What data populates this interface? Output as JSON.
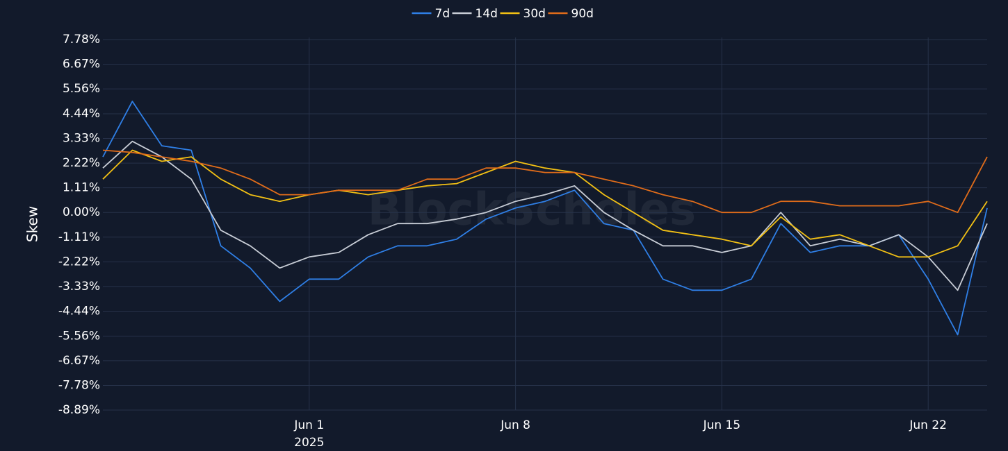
{
  "chart_data": {
    "type": "line",
    "y_label": "Skew",
    "watermark": "BlockScholes",
    "x": [
      "2025-05-25",
      "2025-05-26",
      "2025-05-27",
      "2025-05-28",
      "2025-05-29",
      "2025-05-30",
      "2025-05-31",
      "2025-06-01",
      "2025-06-02",
      "2025-06-03",
      "2025-06-04",
      "2025-06-05",
      "2025-06-06",
      "2025-06-07",
      "2025-06-08",
      "2025-06-09",
      "2025-06-10",
      "2025-06-11",
      "2025-06-12",
      "2025-06-13",
      "2025-06-14",
      "2025-06-15",
      "2025-06-16",
      "2025-06-17",
      "2025-06-18",
      "2025-06-19",
      "2025-06-20",
      "2025-06-21",
      "2025-06-22",
      "2025-06-23",
      "2025-06-24"
    ],
    "xlim": [
      "2025-05-25",
      "2025-06-24"
    ],
    "xticks": [
      {
        "value": "2025-06-01",
        "label": "Jun 1",
        "sublabel": "2025"
      },
      {
        "value": "2025-06-08",
        "label": "Jun 8"
      },
      {
        "value": "2025-06-15",
        "label": "Jun 15"
      },
      {
        "value": "2025-06-22",
        "label": "Jun 22"
      }
    ],
    "ylim": [
      -8.89,
      7.78
    ],
    "yticks": [
      {
        "value": -8.89,
        "label": "-8.89%"
      },
      {
        "value": -7.78,
        "label": "-7.78%"
      },
      {
        "value": -6.67,
        "label": "-6.67%"
      },
      {
        "value": -5.56,
        "label": "-5.56%"
      },
      {
        "value": -4.44,
        "label": "-4.44%"
      },
      {
        "value": -3.33,
        "label": "-3.33%"
      },
      {
        "value": -2.22,
        "label": "-2.22%"
      },
      {
        "value": -1.11,
        "label": "-1.11%"
      },
      {
        "value": 0,
        "label": "0.00%"
      },
      {
        "value": 1.11,
        "label": "1.11%"
      },
      {
        "value": 2.22,
        "label": "2.22%"
      },
      {
        "value": 3.33,
        "label": "3.33%"
      },
      {
        "value": 4.44,
        "label": "4.44%"
      },
      {
        "value": 5.56,
        "label": "5.56%"
      },
      {
        "value": 6.67,
        "label": "6.67%"
      },
      {
        "value": 7.78,
        "label": "7.78%"
      }
    ],
    "grid": true,
    "legend": "top",
    "series": [
      {
        "name": "7d",
        "color": "#2f7fe6",
        "values": [
          2.5,
          5.0,
          3.0,
          2.8,
          -1.5,
          -2.5,
          -4.0,
          -3.0,
          -3.0,
          -2.0,
          -1.5,
          -1.5,
          -1.2,
          -0.3,
          0.2,
          0.5,
          1.0,
          -0.5,
          -0.8,
          -3.0,
          -3.5,
          -3.5,
          -3.0,
          -0.5,
          -1.8,
          -1.5,
          -1.5,
          -1.0,
          -3.0,
          -5.5,
          0.2
        ]
      },
      {
        "name": "14d",
        "color": "#c8cdd6",
        "values": [
          2.0,
          3.2,
          2.5,
          1.5,
          -0.8,
          -1.5,
          -2.5,
          -2.0,
          -1.8,
          -1.0,
          -0.5,
          -0.5,
          -0.3,
          0.0,
          0.5,
          0.8,
          1.2,
          0.0,
          -0.8,
          -1.5,
          -1.5,
          -1.8,
          -1.5,
          0.0,
          -1.5,
          -1.2,
          -1.5,
          -1.0,
          -2.0,
          -3.5,
          -0.5
        ]
      },
      {
        "name": "30d",
        "color": "#f2c014",
        "values": [
          1.5,
          2.8,
          2.3,
          2.5,
          1.5,
          0.8,
          0.5,
          0.8,
          1.0,
          0.8,
          1.0,
          1.2,
          1.3,
          1.8,
          2.3,
          2.0,
          1.8,
          0.8,
          0.0,
          -0.8,
          -1.0,
          -1.2,
          -1.5,
          -0.2,
          -1.2,
          -1.0,
          -1.5,
          -2.0,
          -2.0,
          -1.5,
          0.5
        ]
      },
      {
        "name": "90d",
        "color": "#e06c1a",
        "values": [
          2.8,
          2.7,
          2.5,
          2.3,
          2.0,
          1.5,
          0.8,
          0.8,
          1.0,
          1.0,
          1.0,
          1.5,
          1.5,
          2.0,
          2.0,
          1.8,
          1.8,
          1.5,
          1.2,
          0.8,
          0.5,
          0.0,
          0.0,
          0.5,
          0.5,
          0.3,
          0.3,
          0.3,
          0.5,
          0.0,
          2.5
        ]
      }
    ]
  }
}
